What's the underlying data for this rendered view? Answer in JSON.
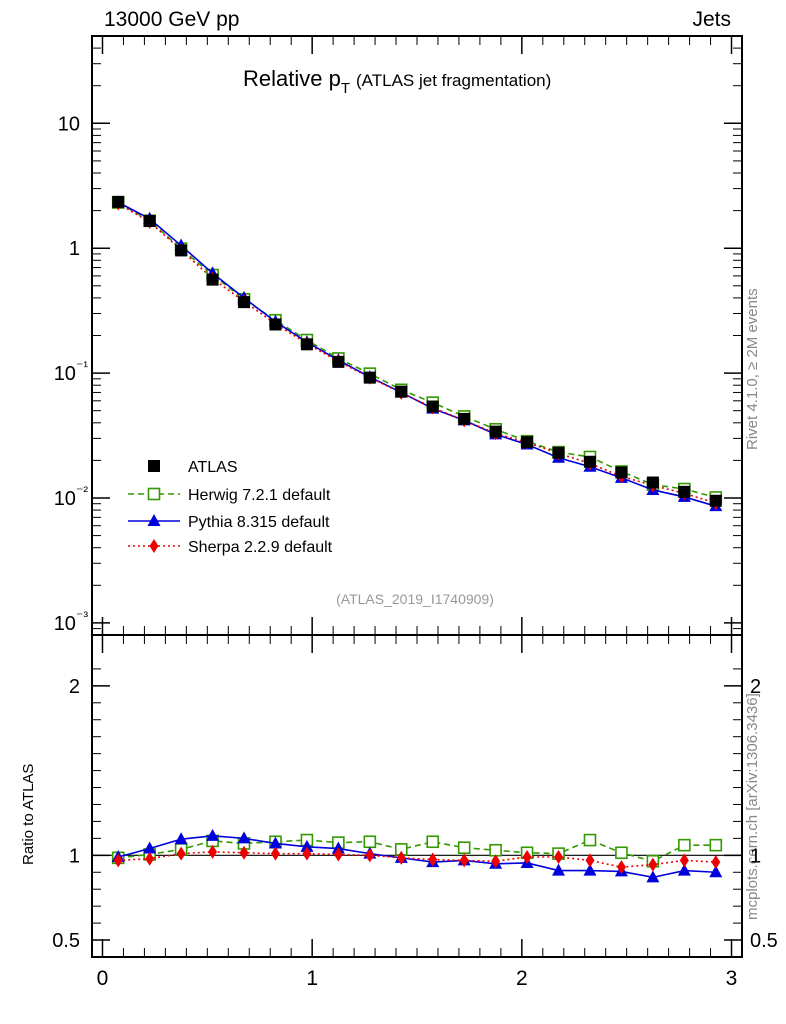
{
  "header": {
    "left": "13000 GeV pp",
    "right": "Jets"
  },
  "side": {
    "upper": "Rivet 4.1.0, ≥ 2M events",
    "lower": "mcplots.cern.ch [arXiv:1306.3436]"
  },
  "colors": {
    "atlas": "#000000",
    "herwig": "#339900",
    "pythia": "#0000dd",
    "sherpa": "#ee0000",
    "watermark": "#999999"
  },
  "chart_data": {
    "type": "line",
    "title": "Relative p",
    "title_sub": "T",
    "title_note": "(ATLAS jet fragmentation)",
    "watermark": "(ATLAS_2019_I1740909)",
    "x": [
      0.075,
      0.225,
      0.375,
      0.525,
      0.675,
      0.825,
      0.975,
      1.125,
      1.275,
      1.425,
      1.575,
      1.725,
      1.875,
      2.025,
      2.175,
      2.325,
      2.475,
      2.625,
      2.775,
      2.925
    ],
    "xlim": [
      -0.05,
      3.05
    ],
    "xticks": [
      "0",
      "1",
      "2",
      "3"
    ],
    "main": {
      "yscale": "log",
      "ylim": [
        0.0008,
        50
      ],
      "yticks": [
        "10⁻³",
        "10⁻²",
        "10⁻¹",
        "1",
        "10"
      ],
      "series": [
        {
          "name": "ATLAS",
          "values": [
            2.35,
            1.65,
            0.96,
            0.56,
            0.37,
            0.245,
            0.17,
            0.123,
            0.092,
            0.071,
            0.054,
            0.043,
            0.034,
            0.028,
            0.023,
            0.0195,
            0.016,
            0.0133,
            0.0112,
            0.0095
          ]
        },
        {
          "name": "Herwig 7.2.1 default",
          "values": [
            2.32,
            1.66,
            0.99,
            0.61,
            0.39,
            0.265,
            0.184,
            0.131,
            0.099,
            0.0735,
            0.058,
            0.045,
            0.0355,
            0.0285,
            0.0233,
            0.0213,
            0.0163,
            0.0128,
            0.0118,
            0.0101
          ]
        },
        {
          "name": "Pythia 8.315 default",
          "values": [
            2.33,
            1.72,
            1.05,
            0.63,
            0.4,
            0.258,
            0.177,
            0.127,
            0.093,
            0.07,
            0.052,
            0.0418,
            0.0323,
            0.0268,
            0.021,
            0.0178,
            0.0145,
            0.0116,
            0.0102,
            0.0086
          ]
        },
        {
          "name": "Sherpa 2.2.9 default",
          "values": [
            2.28,
            1.62,
            0.97,
            0.57,
            0.375,
            0.248,
            0.172,
            0.124,
            0.092,
            0.0695,
            0.053,
            0.0418,
            0.0329,
            0.0278,
            0.0228,
            0.0189,
            0.0149,
            0.0126,
            0.0109,
            0.0091
          ]
        }
      ]
    },
    "ratio": {
      "ylabel": "Ratio to ATLAS",
      "ylim": [
        0.4,
        2.3
      ],
      "yticks": [
        "0.5",
        "1",
        "2"
      ],
      "series": [
        {
          "name": "Herwig 7.2.1 default",
          "values": [
            0.985,
            1.005,
            1.035,
            1.085,
            1.07,
            1.08,
            1.09,
            1.075,
            1.08,
            1.035,
            1.08,
            1.045,
            1.03,
            1.015,
            1.01,
            1.09,
            1.015,
            0.965,
            1.06,
            1.06
          ]
        },
        {
          "name": "Pythia 8.315 default",
          "values": [
            0.99,
            1.04,
            1.095,
            1.115,
            1.1,
            1.07,
            1.05,
            1.04,
            1.01,
            0.985,
            0.96,
            0.97,
            0.95,
            0.955,
            0.91,
            0.91,
            0.905,
            0.87,
            0.91,
            0.9
          ]
        },
        {
          "name": "Sherpa 2.2.9 default",
          "values": [
            0.97,
            0.98,
            1.01,
            1.02,
            1.015,
            1.01,
            1.01,
            1.005,
            1.0,
            0.985,
            0.975,
            0.97,
            0.965,
            0.99,
            0.99,
            0.97,
            0.93,
            0.945,
            0.97,
            0.96
          ]
        }
      ]
    },
    "legend": [
      "ATLAS",
      "Herwig 7.2.1 default",
      "Pythia 8.315 default",
      "Sherpa 2.2.9 default"
    ]
  }
}
